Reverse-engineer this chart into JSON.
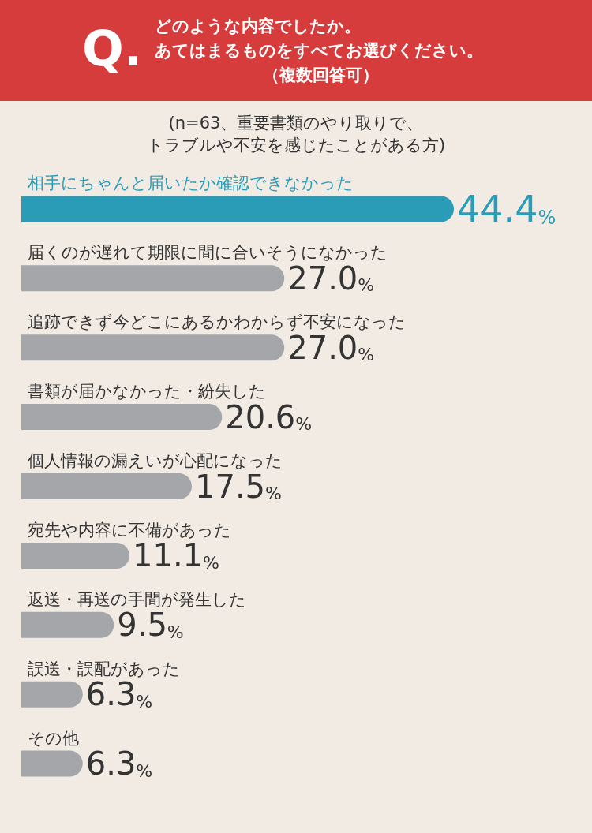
{
  "chart_data": {
    "type": "bar",
    "orientation": "horizontal",
    "title": "どのような内容でしたか。あてはまるものをすべてお選びください。（複数回答可）",
    "subtitle": "(n=63、重要書類のやり取りで、トラブルや不安を感じたことがある方)",
    "annotations": [
      "Q."
    ],
    "categories": [
      "相手にちゃんと届いたか確認できなかった",
      "届くのが遅れて期限に間に合いそうになかった",
      "追跡できず今どこにあるかわからず不安になった",
      "書類が届かなかった・紛失した",
      "個人情報の漏えいが心配になった",
      "宛先や内容に不備があった",
      "返送・再送の手間が発生した",
      "誤送・誤配があった",
      "その他"
    ],
    "values": [
      44.4,
      27.0,
      27.0,
      20.6,
      17.5,
      11.1,
      9.5,
      6.3,
      6.3
    ],
    "value_labels": [
      "44.4%",
      "27.0%",
      "27.0%",
      "20.6%",
      "17.5%",
      "11.1%",
      "9.5%",
      "6.3%",
      "6.3%"
    ],
    "colors": [
      "#2a9cb8",
      "#a5a6aa",
      "#a5a6aa",
      "#a5a6aa",
      "#a5a6aa",
      "#a5a6aa",
      "#a5a6aa",
      "#a5a6aa",
      "#a5a6aa"
    ]
  }
}
